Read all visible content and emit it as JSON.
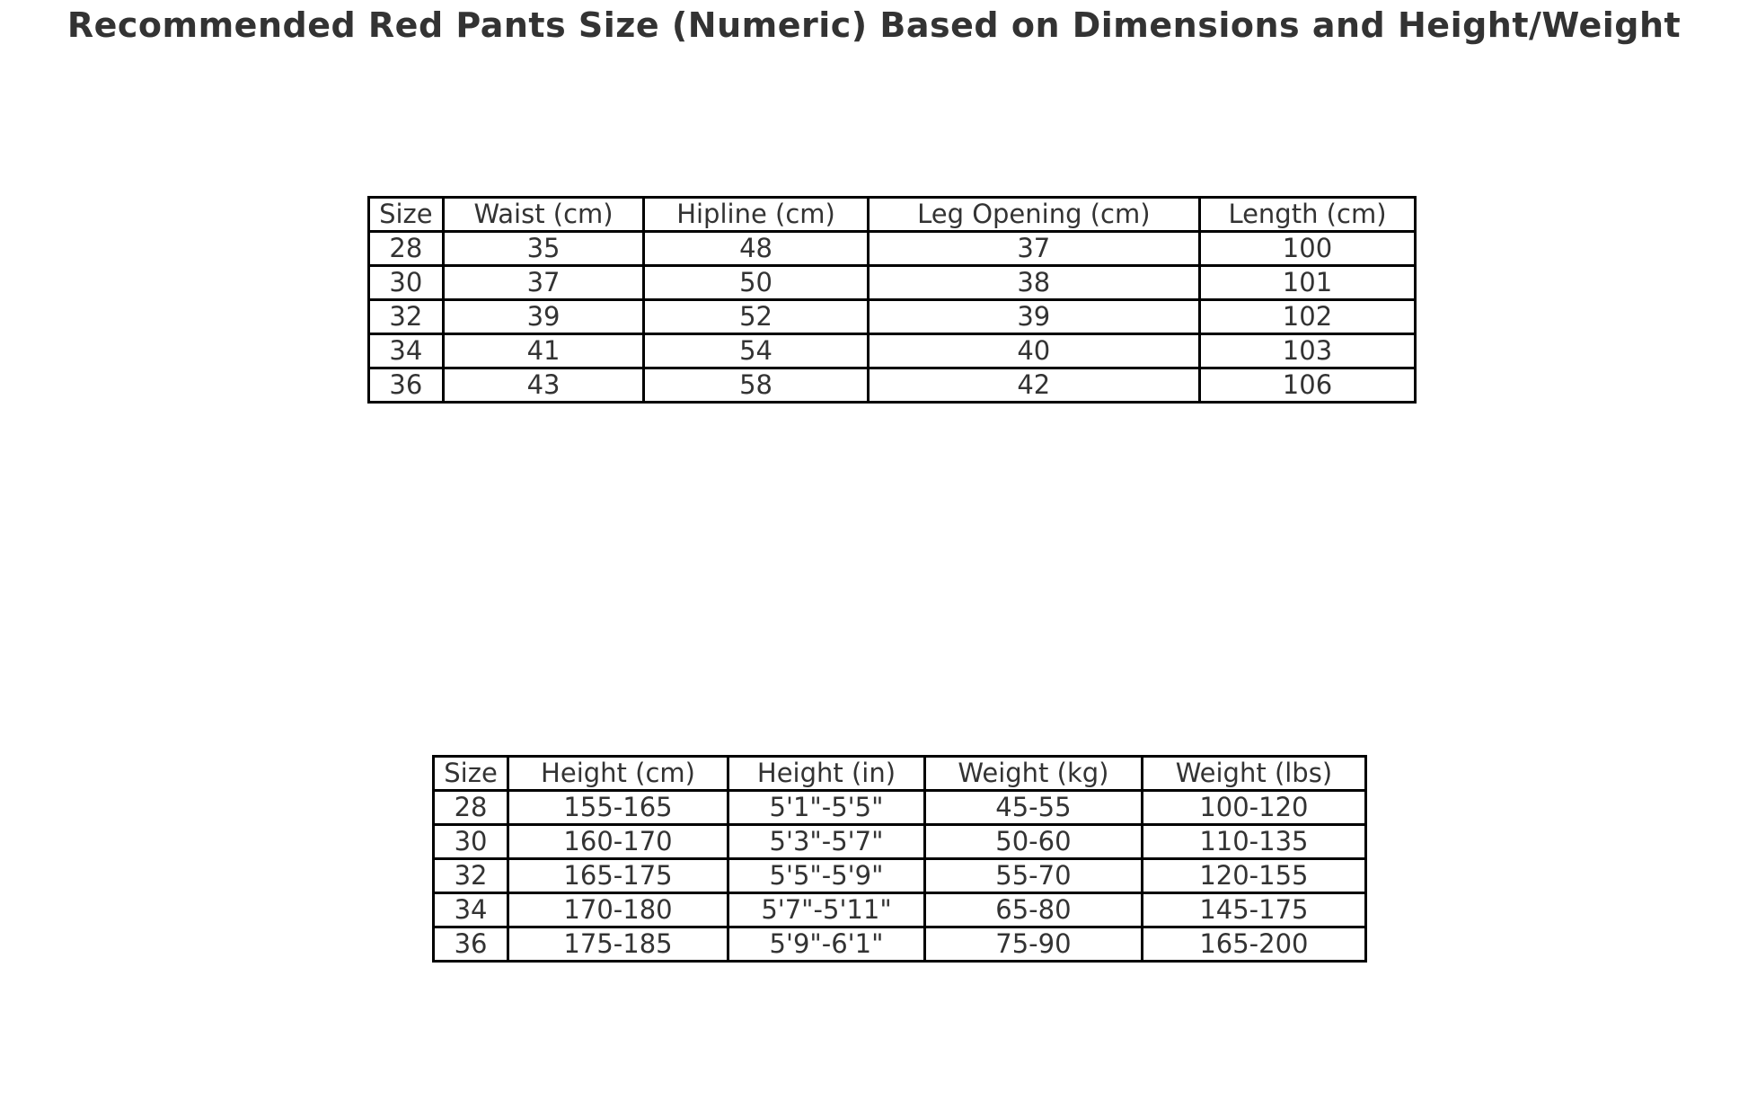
{
  "title": "Recommended Red Pants Size (Numeric) Based on Dimensions and Height/Weight",
  "colors": {
    "background": "#ffffff",
    "text": "#333333",
    "table_border": "#000000"
  },
  "chart_data": [
    {
      "type": "table",
      "name": "dimensions-table",
      "columns": [
        "Size",
        "Waist (cm)",
        "Hipline (cm)",
        "Leg Opening (cm)",
        "Length (cm)"
      ],
      "rows": [
        [
          "28",
          "35",
          "48",
          "37",
          "100"
        ],
        [
          "30",
          "37",
          "50",
          "38",
          "101"
        ],
        [
          "32",
          "39",
          "52",
          "39",
          "102"
        ],
        [
          "34",
          "41",
          "54",
          "40",
          "103"
        ],
        [
          "36",
          "43",
          "58",
          "42",
          "106"
        ]
      ]
    },
    {
      "type": "table",
      "name": "height-weight-table",
      "columns": [
        "Size",
        "Height (cm)",
        "Height (in)",
        "Weight (kg)",
        "Weight (lbs)"
      ],
      "rows": [
        [
          "28",
          "155-165",
          "5'1\"-5'5\"",
          "45-55",
          "100-120"
        ],
        [
          "30",
          "160-170",
          "5'3\"-5'7\"",
          "50-60",
          "110-135"
        ],
        [
          "32",
          "165-175",
          "5'5\"-5'9\"",
          "55-70",
          "120-155"
        ],
        [
          "34",
          "170-180",
          "5'7\"-5'11\"",
          "65-80",
          "145-175"
        ],
        [
          "36",
          "175-185",
          "5'9\"-6'1\"",
          "75-90",
          "165-200"
        ]
      ]
    }
  ]
}
